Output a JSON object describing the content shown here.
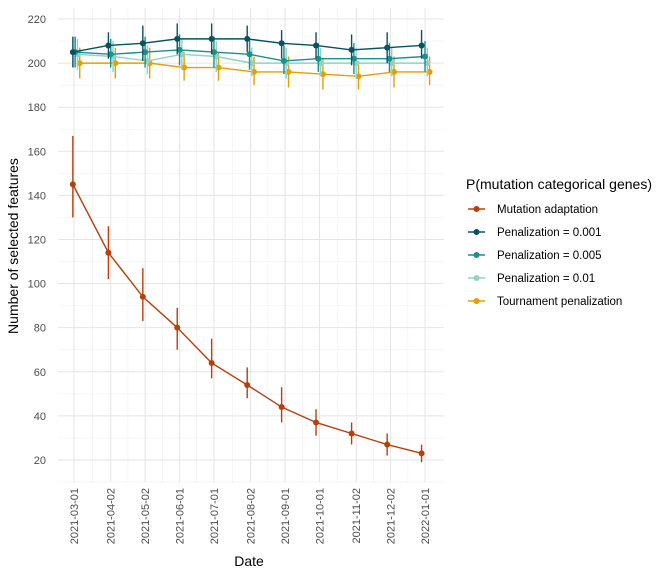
{
  "chart_data": {
    "type": "line",
    "xlabel": "Date",
    "ylabel": "Number of selected features",
    "x_ticks": [
      "2021-03-01",
      "2021-04-02",
      "2021-05-02",
      "2021-06-01",
      "2021-07-01",
      "2021-08-02",
      "2021-09-01",
      "2021-10-01",
      "2021-11-02",
      "2021-12-02",
      "2022-01-01"
    ],
    "y_ticks": [
      20,
      40,
      60,
      80,
      100,
      120,
      140,
      160,
      180,
      200,
      220
    ],
    "ylim": [
      10,
      225
    ],
    "grid": true,
    "legend_title": "P(mutation categorical genes)",
    "legend_position": "right",
    "series": [
      {
        "name": "Mutation adaptation",
        "color": "#b5400c",
        "x": [
          "2021-02-28",
          "2021-03-31",
          "2021-04-30",
          "2021-05-30",
          "2021-06-29",
          "2021-07-30",
          "2021-08-29",
          "2021-09-28",
          "2021-10-29",
          "2021-11-29",
          "2021-12-29"
        ],
        "y": [
          145,
          114,
          94,
          80,
          64,
          54,
          44,
          37,
          32,
          27,
          23
        ],
        "ymin": [
          130,
          102,
          83,
          70,
          57,
          48,
          37,
          31,
          27,
          22,
          19
        ],
        "ymax": [
          167,
          126,
          107,
          89,
          75,
          62,
          53,
          43,
          37,
          32,
          27
        ]
      },
      {
        "name": "Penalization = 0.001",
        "color": "#08525e",
        "x": [
          "2021-02-28",
          "2021-03-31",
          "2021-04-30",
          "2021-05-30",
          "2021-06-29",
          "2021-07-30",
          "2021-08-29",
          "2021-09-28",
          "2021-10-29",
          "2021-11-29",
          "2021-12-29"
        ],
        "y": [
          205,
          208,
          209,
          211,
          211,
          211,
          209,
          208,
          206,
          207,
          208
        ],
        "ymin": [
          198,
          202,
          201,
          204,
          204,
          205,
          202,
          202,
          199,
          200,
          202
        ],
        "ymax": [
          212,
          214,
          217,
          218,
          218,
          217,
          215,
          214,
          213,
          214,
          215
        ]
      },
      {
        "name": "Penalization = 0.005",
        "color": "#1a8f8f",
        "x": [
          "2021-03-02",
          "2021-04-02",
          "2021-05-02",
          "2021-06-01",
          "2021-07-01",
          "2021-08-01",
          "2021-08-31",
          "2021-09-30",
          "2021-10-31",
          "2021-12-01",
          "2022-01-01"
        ],
        "y": [
          205,
          204,
          205,
          206,
          205,
          204,
          201,
          202,
          202,
          202,
          203
        ],
        "ymin": [
          198,
          198,
          198,
          199,
          198,
          197,
          195,
          196,
          195,
          196,
          196
        ],
        "ymax": [
          212,
          211,
          212,
          213,
          212,
          211,
          208,
          209,
          209,
          209,
          210
        ]
      },
      {
        "name": "Penalization = 0.01",
        "color": "#8fd3c4",
        "x": [
          "2021-03-04",
          "2021-04-04",
          "2021-05-04",
          "2021-06-03",
          "2021-07-03",
          "2021-08-03",
          "2021-09-02",
          "2021-10-02",
          "2021-11-02",
          "2021-12-03",
          "2022-01-03"
        ],
        "y": [
          204,
          203,
          201,
          204,
          203,
          200,
          200,
          200,
          200,
          200,
          200
        ],
        "ymin": [
          197,
          196,
          195,
          197,
          196,
          194,
          193,
          194,
          193,
          194,
          194
        ],
        "ymax": [
          211,
          210,
          208,
          211,
          210,
          207,
          207,
          207,
          207,
          207,
          207
        ]
      },
      {
        "name": "Tournament penalization",
        "color": "#e69f00",
        "x": [
          "2021-03-06",
          "2021-04-06",
          "2021-05-06",
          "2021-06-05",
          "2021-07-05",
          "2021-08-05",
          "2021-09-04",
          "2021-10-04",
          "2021-11-04",
          "2021-12-05",
          "2022-01-05"
        ],
        "y": [
          200,
          200,
          200,
          198,
          198,
          196,
          196,
          195,
          194,
          196,
          196
        ],
        "ymin": [
          193,
          193,
          193,
          192,
          192,
          190,
          189,
          188,
          188,
          189,
          190
        ],
        "ymax": [
          207,
          207,
          207,
          205,
          205,
          203,
          203,
          202,
          201,
          203,
          203
        ]
      }
    ]
  }
}
